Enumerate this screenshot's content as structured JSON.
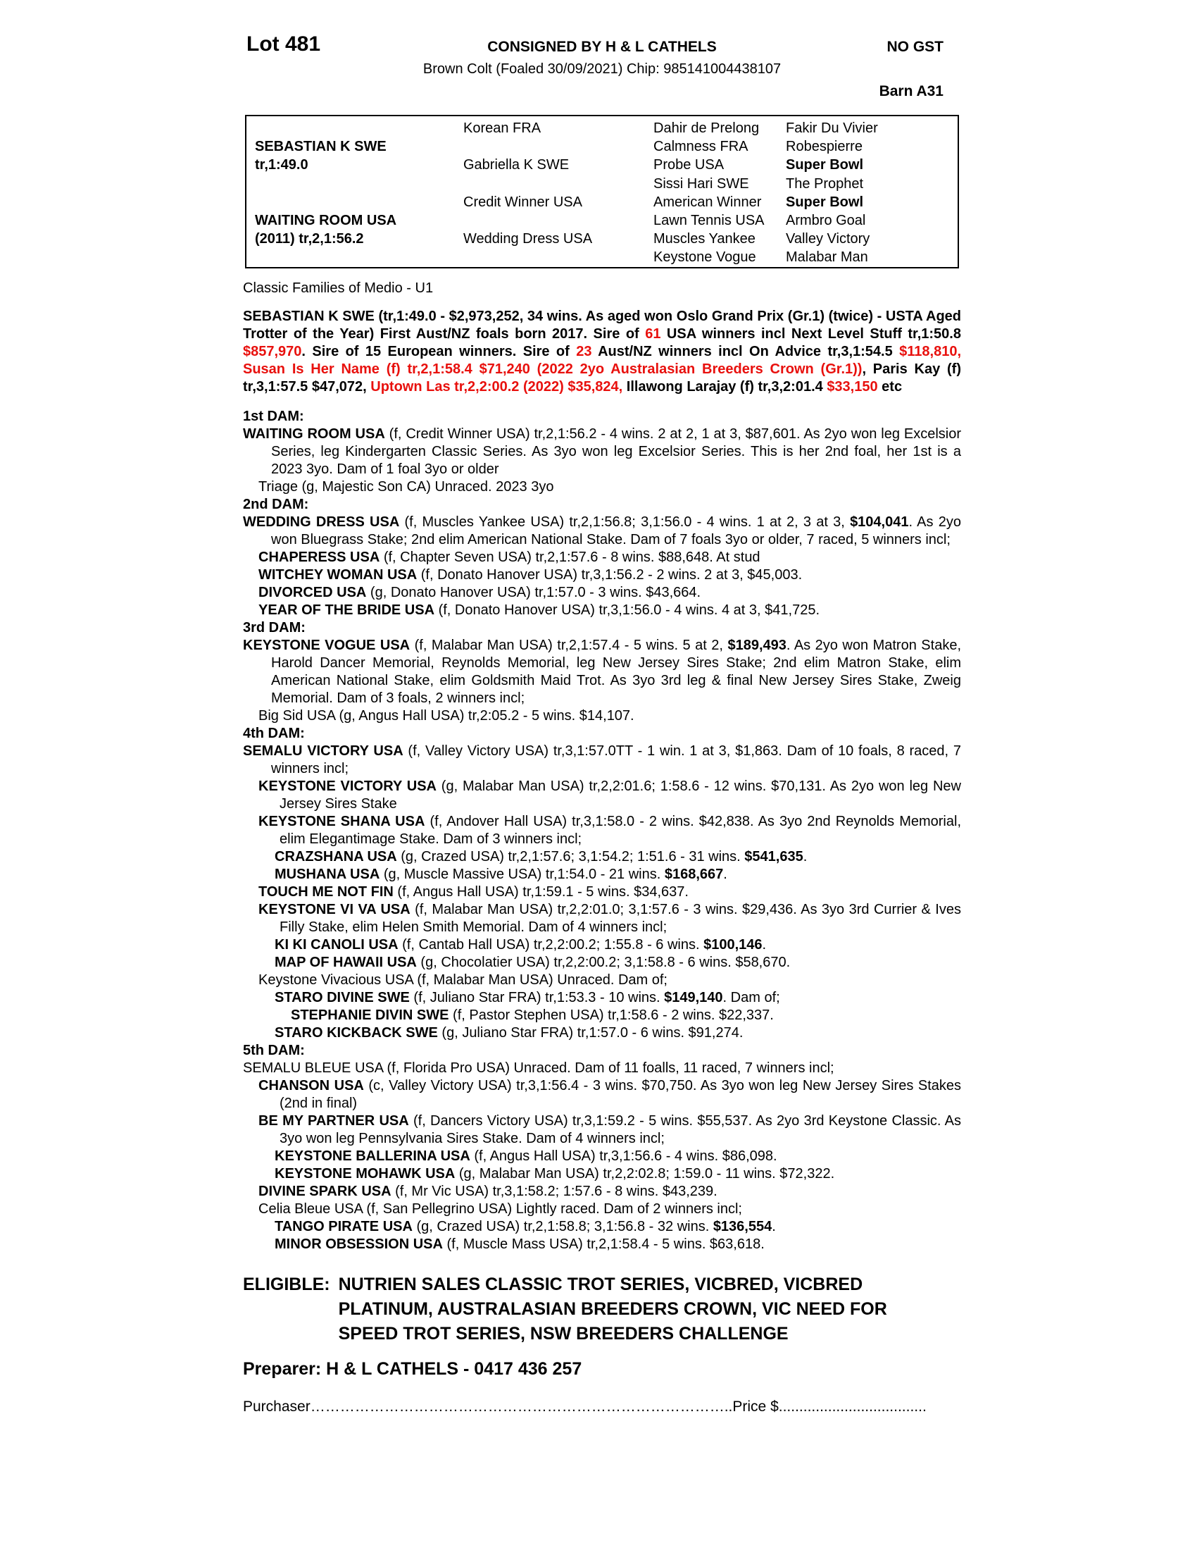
{
  "colors": {
    "accent_red": "#e8100d"
  },
  "header": {
    "lot": "Lot 481",
    "consigned": "CONSIGNED BY H & L CATHELS",
    "no_gst": "NO GST",
    "colt_line": "Brown Colt (Foaled 30/09/2021) Chip: 985141004438107",
    "barn": "Barn A31"
  },
  "pedigree_table": {
    "col1": [
      null,
      {
        "t": "SEBASTIAN K SWE",
        "b": true
      },
      {
        "t": "tr,1:49.0",
        "b": true
      },
      null,
      null,
      {
        "t": "WAITING ROOM USA",
        "b": true
      },
      {
        "t": "(2011) tr,2,1:56.2",
        "b": true
      },
      null
    ],
    "col2": [
      {
        "t": "Korean FRA"
      },
      null,
      {
        "t": "Gabriella K SWE"
      },
      null,
      {
        "t": "Credit Winner USA"
      },
      null,
      {
        "t": "Wedding Dress USA"
      },
      null
    ],
    "col3": [
      {
        "t": "Dahir de Prelong"
      },
      {
        "t": "Calmness FRA"
      },
      {
        "t": "Probe USA"
      },
      {
        "t": "Sissi Hari SWE"
      },
      {
        "t": "American Winner"
      },
      {
        "t": "Lawn Tennis USA"
      },
      {
        "t": "Muscles Yankee"
      },
      {
        "t": "Keystone Vogue"
      }
    ],
    "col4": [
      {
        "t": "Fakir Du Vivier"
      },
      {
        "t": "Robespierre"
      },
      {
        "t": "Super Bowl",
        "b": true
      },
      {
        "t": "The Prophet"
      },
      {
        "t": "Super Bowl",
        "b": true
      },
      {
        "t": "Armbro Goal"
      },
      {
        "t": "Valley Victory"
      },
      {
        "t": "Malabar Man"
      }
    ]
  },
  "family_line": "Classic Families of Medio - U1",
  "sire_paragraph": [
    {
      "t": "SEBASTIAN K SWE (tr,1:49.0 - $2,973,252, 34 wins. As aged won Oslo Grand Prix (Gr.1) (twice) - USTA Aged Trotter of the Year) First Aust/NZ foals born 2017. Sire of "
    },
    {
      "t": "61",
      "red": true
    },
    {
      "t": " USA winners incl Next Level Stuff tr,1:50.8 "
    },
    {
      "t": "$857,970",
      "red": true
    },
    {
      "t": ". Sire of 15 European winners. Sire of "
    },
    {
      "t": "23",
      "red": true
    },
    {
      "t": " Aust/NZ winners incl On Advice tr,3,1:54.5 "
    },
    {
      "t": "$118,810, Susan Is Her Name (f) tr,2,1:58.4 $71,240 (2022 2yo Australasian Breeders Crown (Gr.1))",
      "red": true
    },
    {
      "t": ", Paris Kay (f) tr,3,1:57.5 $47,072, "
    },
    {
      "t": "Uptown Las tr,2,2:00.2 (2022) $35,824,",
      "red": true
    },
    {
      "t": " Illawong Larajay (f) tr,3,2:01.4 "
    },
    {
      "t": "$33,150",
      "red": true
    },
    {
      "t": " etc"
    }
  ],
  "dams": [
    {
      "heading": "1st DAM:",
      "entries": [
        {
          "indent": 0,
          "segs": [
            {
              "t": "WAITING ROOM USA",
              "b": true
            },
            {
              "t": " (f, Credit Winner USA) tr,2,1:56.2 - 4 wins. 2 at 2, 1 at 3, $87,601. As 2yo won leg Excelsior Series, leg Kindergarten Classic Series. As 3yo won leg Excelsior Series. This is her 2nd foal, her 1st is a 2023 3yo. Dam of 1 foal 3yo or older"
            }
          ]
        },
        {
          "indent": 1,
          "segs": [
            {
              "t": "Triage (g, Majestic Son CA) Unraced. 2023 3yo"
            }
          ]
        }
      ]
    },
    {
      "heading": "2nd DAM:",
      "entries": [
        {
          "indent": 0,
          "segs": [
            {
              "t": "WEDDING DRESS USA",
              "b": true
            },
            {
              "t": " (f, Muscles Yankee USA) tr,2,1:56.8; 3,1:56.0 - 4 wins. 1 at 2, 3 at 3, "
            },
            {
              "t": "$104,041",
              "b": true
            },
            {
              "t": ". As 2yo won Bluegrass Stake; 2nd elim American National Stake. Dam of 7 foals 3yo or older, 7 raced, 5 winners incl;"
            }
          ]
        },
        {
          "indent": 1,
          "segs": [
            {
              "t": "CHAPERESS USA",
              "b": true
            },
            {
              "t": " (f, Chapter Seven USA) tr,2,1:57.6 - 8 wins. $88,648. At stud"
            }
          ]
        },
        {
          "indent": 1,
          "segs": [
            {
              "t": "WITCHEY WOMAN USA",
              "b": true
            },
            {
              "t": " (f, Donato Hanover USA) tr,3,1:56.2 - 2 wins. 2 at 3, $45,003."
            }
          ]
        },
        {
          "indent": 1,
          "segs": [
            {
              "t": "DIVORCED USA",
              "b": true
            },
            {
              "t": " (g, Donato Hanover USA) tr,1:57.0 - 3 wins. $43,664."
            }
          ]
        },
        {
          "indent": 1,
          "segs": [
            {
              "t": "YEAR OF THE BRIDE USA",
              "b": true
            },
            {
              "t": " (f, Donato Hanover USA) tr,3,1:56.0 - 4 wins. 4 at 3, $41,725."
            }
          ]
        }
      ]
    },
    {
      "heading": "3rd DAM:",
      "entries": [
        {
          "indent": 0,
          "segs": [
            {
              "t": "KEYSTONE VOGUE USA",
              "b": true
            },
            {
              "t": " (f, Malabar Man USA) tr,2,1:57.4 - 5 wins. 5 at 2, "
            },
            {
              "t": "$189,493",
              "b": true
            },
            {
              "t": ". As 2yo won Matron Stake, Harold Dancer Memorial, Reynolds Memorial, leg New Jersey Sires Stake; 2nd elim Matron Stake, elim American National Stake, elim Goldsmith Maid Trot. As 3yo 3rd leg & final New Jersey Sires Stake, Zweig Memorial. Dam of 3 foals, 2 winners incl;"
            }
          ]
        },
        {
          "indent": 1,
          "segs": [
            {
              "t": "Big Sid USA (g, Angus Hall USA) tr,2:05.2 - 5 wins. $14,107."
            }
          ]
        }
      ]
    },
    {
      "heading": "4th DAM:",
      "entries": [
        {
          "indent": 0,
          "segs": [
            {
              "t": "SEMALU VICTORY USA",
              "b": true
            },
            {
              "t": " (f, Valley Victory USA) tr,3,1:57.0TT - 1 win. 1 at 3, $1,863. Dam of 10 foals, 8 raced, 7 winners incl;"
            }
          ]
        },
        {
          "indent": 1,
          "segs": [
            {
              "t": "KEYSTONE VICTORY USA",
              "b": true
            },
            {
              "t": " (g, Malabar Man USA) tr,2,2:01.6; 1:58.6 - 12 wins. $70,131. As 2yo won leg New Jersey Sires Stake"
            }
          ]
        },
        {
          "indent": 1,
          "segs": [
            {
              "t": "KEYSTONE SHANA USA",
              "b": true
            },
            {
              "t": " (f, Andover Hall USA) tr,3,1:58.0 - 2 wins. $42,838. As 3yo 2nd Reynolds Memorial, elim Elegantimage Stake. Dam of 3 winners incl;"
            }
          ]
        },
        {
          "indent": 2,
          "segs": [
            {
              "t": "CRAZSHANA USA",
              "b": true
            },
            {
              "t": " (g, Crazed USA) tr,2,1:57.6; 3,1:54.2; 1:51.6 - 31 wins. "
            },
            {
              "t": "$541,635",
              "b": true
            },
            {
              "t": "."
            }
          ]
        },
        {
          "indent": 2,
          "segs": [
            {
              "t": "MUSHANA USA",
              "b": true
            },
            {
              "t": " (g, Muscle Massive USA) tr,1:54.0 - 21 wins. "
            },
            {
              "t": "$168,667",
              "b": true
            },
            {
              "t": "."
            }
          ]
        },
        {
          "indent": 1,
          "segs": [
            {
              "t": "TOUCH ME NOT FIN",
              "b": true
            },
            {
              "t": " (f, Angus Hall USA) tr,1:59.1 - 5 wins. $34,637."
            }
          ]
        },
        {
          "indent": 1,
          "segs": [
            {
              "t": "KEYSTONE VI VA USA",
              "b": true
            },
            {
              "t": " (f, Malabar Man USA) tr,2,2:01.0; 3,1:57.6 - 3 wins. $29,436. As 3yo 3rd Currier & Ives Filly Stake, elim Helen Smith Memorial. Dam of 4 winners incl;"
            }
          ]
        },
        {
          "indent": 2,
          "segs": [
            {
              "t": "KI KI CANOLI USA",
              "b": true
            },
            {
              "t": " (f, Cantab Hall USA) tr,2,2:00.2; 1:55.8 - 6 wins. "
            },
            {
              "t": "$100,146",
              "b": true
            },
            {
              "t": "."
            }
          ]
        },
        {
          "indent": 2,
          "segs": [
            {
              "t": "MAP OF HAWAII USA",
              "b": true
            },
            {
              "t": " (g, Chocolatier USA) tr,2,2:00.2; 3,1:58.8 - 6 wins. $58,670."
            }
          ]
        },
        {
          "indent": 1,
          "segs": [
            {
              "t": "Keystone Vivacious USA (f, Malabar Man USA) Unraced. Dam of;"
            }
          ]
        },
        {
          "indent": 2,
          "segs": [
            {
              "t": "STARO DIVINE SWE",
              "b": true
            },
            {
              "t": " (f, Juliano Star FRA) tr,1:53.3 - 10 wins. "
            },
            {
              "t": "$149,140",
              "b": true
            },
            {
              "t": ". Dam of;"
            }
          ]
        },
        {
          "indent": 3,
          "segs": [
            {
              "t": "STEPHANIE DIVIN SWE",
              "b": true
            },
            {
              "t": " (f, Pastor Stephen USA) tr,1:58.6 - 2 wins. $22,337."
            }
          ]
        },
        {
          "indent": 2,
          "segs": [
            {
              "t": "STARO KICKBACK SWE",
              "b": true
            },
            {
              "t": " (g, Juliano Star FRA) tr,1:57.0 - 6 wins. $91,274."
            }
          ]
        }
      ]
    },
    {
      "heading": "5th DAM:",
      "entries": [
        {
          "indent": 0,
          "segs": [
            {
              "t": "SEMALU BLEUE USA (f, Florida Pro USA) Unraced. Dam of 11 foalls, 11 raced, 7 winners incl;"
            }
          ]
        },
        {
          "indent": 1,
          "segs": [
            {
              "t": "CHANSON USA",
              "b": true
            },
            {
              "t": " (c, Valley Victory USA) tr,3,1:56.4 - 3 wins. $70,750. As 3yo won leg New Jersey Sires Stakes (2nd in final)"
            }
          ]
        },
        {
          "indent": 1,
          "segs": [
            {
              "t": "BE MY PARTNER USA",
              "b": true
            },
            {
              "t": " (f, Dancers Victory USA) tr,3,1:59.2 - 5 wins. $55,537. As 2yo 3rd Keystone Classic. As 3yo won leg Pennsylvania Sires Stake. Dam of 4 winners incl;"
            }
          ]
        },
        {
          "indent": 2,
          "segs": [
            {
              "t": "KEYSTONE BALLERINA USA",
              "b": true
            },
            {
              "t": " (f, Angus Hall USA) tr,3,1:56.6 - 4 wins. $86,098."
            }
          ]
        },
        {
          "indent": 2,
          "segs": [
            {
              "t": "KEYSTONE MOHAWK USA",
              "b": true
            },
            {
              "t": " (g, Malabar Man USA) tr,2,2:02.8; 1:59.0 - 11 wins. $72,322."
            }
          ]
        },
        {
          "indent": 1,
          "segs": [
            {
              "t": "DIVINE SPARK USA",
              "b": true
            },
            {
              "t": " (f, Mr Vic USA) tr,3,1:58.2; 1:57.6 - 8 wins. $43,239."
            }
          ]
        },
        {
          "indent": 1,
          "segs": [
            {
              "t": "Celia Bleue USA (f, San Pellegrino USA) Lightly raced. Dam of 2 winners incl;"
            }
          ]
        },
        {
          "indent": 2,
          "segs": [
            {
              "t": "TANGO PIRATE USA",
              "b": true
            },
            {
              "t": " (g, Crazed USA) tr,2,1:58.8; 3,1:56.8 - 32 wins. "
            },
            {
              "t": "$136,554",
              "b": true
            },
            {
              "t": "."
            }
          ]
        },
        {
          "indent": 2,
          "segs": [
            {
              "t": "MINOR OBSESSION USA",
              "b": true
            },
            {
              "t": " (f, Muscle Mass USA) tr,2,1:58.4 - 5 wins. $63,618."
            }
          ]
        }
      ]
    }
  ],
  "eligible": {
    "label": "ELIGIBLE:",
    "lines": [
      "NUTRIEN SALES CLASSIC TROT SERIES, VICBRED, VICBRED",
      "PLATINUM, AUSTRALASIAN BREEDERS CROWN, VIC NEED FOR",
      "SPEED TROT SERIES, NSW BREEDERS CHALLENGE"
    ]
  },
  "preparer": "Preparer: H & L CATHELS - 0417 436 257",
  "purchaser": {
    "label": "Purchaser",
    "leader": "…………………………………………………………………………..",
    "price_label": "Price $",
    "leader2": "...................................."
  }
}
